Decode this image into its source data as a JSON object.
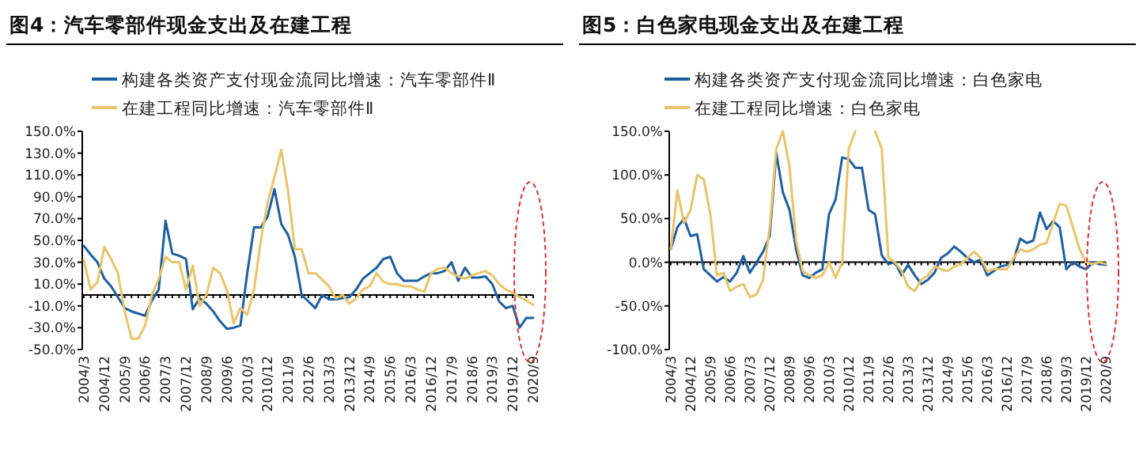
{
  "chart_data": [
    {
      "type": "line",
      "title": "图4：汽车零部件现金支出及在建工程",
      "legend": "top",
      "grid": false,
      "categories": [
        "2004/3",
        null,
        null,
        "2004/12",
        null,
        null,
        "2005/9",
        null,
        null,
        "2006/6",
        null,
        null,
        "2007/3",
        null,
        null,
        "2007/12",
        null,
        null,
        "2008/9",
        null,
        null,
        "2009/6",
        null,
        null,
        "2010/3",
        null,
        null,
        "2010/12",
        null,
        null,
        "2011/9",
        null,
        null,
        "2012/6",
        null,
        null,
        "2013/3",
        null,
        null,
        "2013/12",
        null,
        null,
        "2014/9",
        null,
        null,
        "2015/6",
        null,
        null,
        "2016/3",
        null,
        null,
        "2016/12",
        null,
        null,
        "2017/9",
        null,
        null,
        "2018/6",
        null,
        null,
        "2019/3",
        null,
        null,
        "2019/12",
        null,
        null,
        "2020/9"
      ],
      "ylim": [
        -50,
        150
      ],
      "yticks": [
        {
          "value": -50,
          "label": "-50.0%"
        },
        {
          "value": -30,
          "label": "-30.0%"
        },
        {
          "value": -10,
          "label": "-10.0%"
        },
        {
          "value": 10,
          "label": "10.0%"
        },
        {
          "value": 30,
          "label": "30.0%"
        },
        {
          "value": 50,
          "label": "50.0%"
        },
        {
          "value": 70,
          "label": "70.0%"
        },
        {
          "value": 90,
          "label": "90.0%"
        },
        {
          "value": 110,
          "label": "110.0%"
        },
        {
          "value": 130,
          "label": "130.0%"
        },
        {
          "value": 150,
          "label": "150.0%"
        }
      ],
      "series": [
        {
          "name": "构建各类资产支付现金流同比增速：汽车零部件Ⅱ",
          "color": "#1f5fa0",
          "values": [
            45,
            37,
            30,
            15,
            8,
            -2,
            -12,
            -15,
            -17,
            -19,
            -5,
            5,
            68,
            38,
            36,
            33,
            -13,
            -3,
            -8,
            -15,
            -24,
            -31,
            -30,
            -28,
            20,
            62,
            62,
            72,
            97,
            65,
            55,
            35,
            0,
            -6,
            -12,
            0,
            -4,
            -4,
            -3,
            -2,
            5,
            15,
            20,
            25,
            33,
            35,
            20,
            13,
            13,
            13,
            17,
            20,
            20,
            22,
            30,
            13,
            25,
            16,
            16,
            17,
            10,
            -6,
            -12,
            -10,
            -30,
            -21,
            -21
          ]
        },
        {
          "name": "在建工程同比增速：汽车零部件Ⅱ",
          "color": "#e8c46a",
          "values": [
            32,
            5,
            12,
            44,
            33,
            20,
            -15,
            -40,
            -40,
            -28,
            0,
            15,
            35,
            30,
            30,
            5,
            27,
            -10,
            0,
            25,
            20,
            5,
            -26,
            -12,
            -18,
            5,
            50,
            85,
            108,
            133,
            95,
            42,
            42,
            20,
            20,
            14,
            8,
            -3,
            0,
            -8,
            -3,
            5,
            8,
            20,
            12,
            10,
            10,
            8,
            8,
            5,
            3,
            20,
            24,
            25,
            20,
            17,
            15,
            18,
            20,
            22,
            18,
            10,
            5,
            2,
            -2,
            -5,
            -9
          ]
        }
      ]
    },
    {
      "type": "line",
      "title": "图5：白色家电现金支出及在建工程",
      "legend": "top",
      "categories": [
        "2004/3",
        null,
        null,
        "2004/12",
        null,
        null,
        "2005/9",
        null,
        null,
        "2006/6",
        null,
        null,
        "2007/3",
        null,
        null,
        "2007/12",
        null,
        null,
        "2008/9",
        null,
        null,
        "2009/6",
        null,
        null,
        "2010/3",
        null,
        null,
        "2010/12",
        null,
        null,
        "2011/9",
        null,
        null,
        "2012/6",
        null,
        null,
        "2013/3",
        null,
        null,
        "2013/12",
        null,
        null,
        "2014/9",
        null,
        null,
        "2015/6",
        null,
        null,
        "2016/3",
        null,
        null,
        "2016/12",
        null,
        null,
        "2017/9",
        null,
        null,
        "2018/6",
        null,
        null,
        "2019/3",
        null,
        null,
        "2019/12",
        null,
        null,
        "2020/9"
      ],
      "ylim": [
        -100,
        150
      ],
      "yticks": [
        {
          "value": -100,
          "label": "-100.0%"
        },
        {
          "value": -50,
          "label": "-50.0%"
        },
        {
          "value": 0,
          "label": "0.0%"
        },
        {
          "value": 50,
          "label": "50.0%"
        },
        {
          "value": 100,
          "label": "100.0%"
        },
        {
          "value": 150,
          "label": "150.0%"
        }
      ],
      "series": [
        {
          "name": "构建各类资产支付现金流同比增速：白色家电",
          "color": "#1f5fa0",
          "values": [
            15,
            40,
            50,
            30,
            32,
            -8,
            -15,
            -22,
            -17,
            -22,
            -12,
            7,
            -12,
            0,
            12,
            30,
            125,
            80,
            60,
            15,
            -15,
            -18,
            -12,
            -8,
            55,
            72,
            120,
            118,
            108,
            108,
            60,
            55,
            8,
            -2,
            0,
            -15,
            -3,
            -15,
            -25,
            -20,
            -12,
            5,
            10,
            18,
            12,
            5,
            0,
            3,
            -15,
            -10,
            -5,
            -3,
            2,
            27,
            22,
            25,
            57,
            38,
            47,
            40,
            -8,
            0,
            -5,
            -8,
            0,
            -2,
            -3
          ]
        },
        {
          "name": "在建工程同比增速：白色家电",
          "color": "#e8c46a",
          "values": [
            15,
            82,
            45,
            60,
            100,
            95,
            55,
            -15,
            -12,
            -33,
            -28,
            -25,
            -40,
            -37,
            -20,
            40,
            130,
            150,
            110,
            25,
            -10,
            -15,
            -18,
            -15,
            0,
            -18,
            0,
            130,
            150,
            null,
            null,
            150,
            130,
            5,
            0,
            -10,
            -28,
            -33,
            -20,
            -15,
            -5,
            -8,
            -10,
            -5,
            -2,
            5,
            12,
            5,
            -10,
            -8,
            -8,
            -8,
            5,
            15,
            12,
            15,
            20,
            22,
            45,
            67,
            65,
            40,
            15,
            0,
            -2,
            0,
            -2
          ]
        }
      ]
    }
  ]
}
